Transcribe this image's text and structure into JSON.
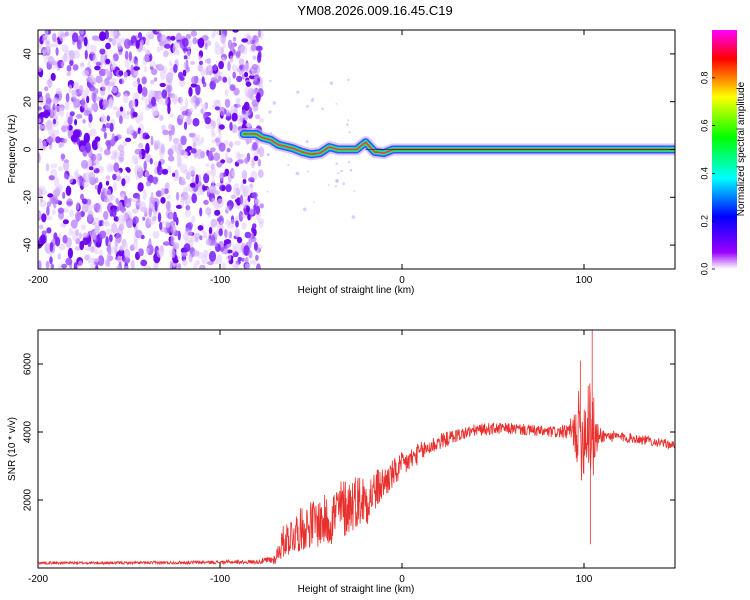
{
  "title": "YM08.2026.009.16.45.C19",
  "chart_data": [
    {
      "type": "heatmap",
      "name": "spectrogram",
      "xlabel": "Height of straight line (km)",
      "ylabel": "Frequency (Hz)",
      "xlim": [
        -200,
        150
      ],
      "ylim": [
        -50,
        50
      ],
      "xticks": [
        -200,
        -100,
        0,
        100
      ],
      "xtick_labels": [
        "-200",
        "-100",
        "0",
        "100"
      ],
      "yticks": [
        -40,
        -20,
        0,
        20,
        40
      ],
      "ytick_labels": [
        "-40",
        "-20",
        "0",
        "20",
        "40"
      ],
      "noise_region_x": [
        -200,
        -77
      ],
      "signal_track": [
        {
          "x": -87,
          "y": 6.5
        },
        {
          "x": -80,
          "y": 6.5
        },
        {
          "x": -77,
          "y": 5.0
        },
        {
          "x": -72,
          "y": 4.0
        },
        {
          "x": -68,
          "y": 2.0
        },
        {
          "x": -60,
          "y": 0.5
        },
        {
          "x": -55,
          "y": -1.0
        },
        {
          "x": -50,
          "y": -2.0
        },
        {
          "x": -45,
          "y": -1.5
        },
        {
          "x": -40,
          "y": 1.0
        },
        {
          "x": -35,
          "y": 0.0
        },
        {
          "x": -25,
          "y": 0.0
        },
        {
          "x": -20,
          "y": 3.0
        },
        {
          "x": -15,
          "y": -1.0
        },
        {
          "x": -10,
          "y": -1.5
        },
        {
          "x": -5,
          "y": 0.0
        },
        {
          "x": 0,
          "y": 0.0
        },
        {
          "x": 150,
          "y": 0.0
        }
      ],
      "colorbar": {
        "label": "Normalized spectral amplitude",
        "range": [
          0,
          1
        ],
        "ticks": [
          0.0,
          0.2,
          0.4,
          0.6,
          0.8
        ],
        "tick_labels": [
          "0.0",
          "0.2",
          "0.4",
          "0.6",
          "0.8"
        ],
        "colors": [
          "#ffffff",
          "#9a00ff",
          "#0000ff",
          "#00ffff",
          "#00ff00",
          "#ffff00",
          "#ff0000",
          "#ff00ff"
        ]
      }
    },
    {
      "type": "line",
      "name": "snr",
      "xlabel": "Height of straight line (km)",
      "ylabel": "SNR (10 * v/v)",
      "xlim": [
        -200,
        150
      ],
      "ylim": [
        0,
        7000
      ],
      "xticks": [
        -200,
        -100,
        0,
        100
      ],
      "xtick_labels": [
        "-200",
        "-100",
        "0",
        "100"
      ],
      "yticks": [
        2000,
        4000,
        6000
      ],
      "ytick_labels": [
        "2000",
        "4000",
        "6000"
      ],
      "color": "#e8312e",
      "series": [
        {
          "name": "SNR",
          "x": [
            -200,
            -150,
            -100,
            -80,
            -70,
            -65,
            -60,
            -50,
            -40,
            -35,
            -30,
            -25,
            -20,
            -10,
            0,
            10,
            20,
            30,
            40,
            50,
            60,
            70,
            80,
            90,
            95,
            98,
            100,
            102,
            104,
            105,
            106,
            110,
            120,
            130,
            140,
            150
          ],
          "y": [
            150,
            150,
            170,
            180,
            250,
            800,
            1000,
            1300,
            1400,
            1700,
            1800,
            2000,
            2000,
            2500,
            3000,
            3400,
            3700,
            3900,
            4050,
            4100,
            4100,
            4050,
            4000,
            4000,
            4000,
            4000,
            3900,
            4400,
            4600,
            3700,
            3800,
            3900,
            3850,
            3800,
            3700,
            3600
          ],
          "noise_amplitude": [
            40,
            40,
            50,
            60,
            150,
            500,
            600,
            700,
            800,
            900,
            900,
            800,
            800,
            500,
            400,
            300,
            250,
            200,
            180,
            180,
            170,
            170,
            170,
            200,
            600,
            1500,
            1200,
            1600,
            2500,
            1800,
            600,
            200,
            150,
            150,
            130,
            120
          ]
        }
      ],
      "extremes": [
        {
          "x": 98,
          "y": 6100
        },
        {
          "x": 104.5,
          "y": 7000
        },
        {
          "x": 103.5,
          "y": 700
        }
      ]
    }
  ]
}
